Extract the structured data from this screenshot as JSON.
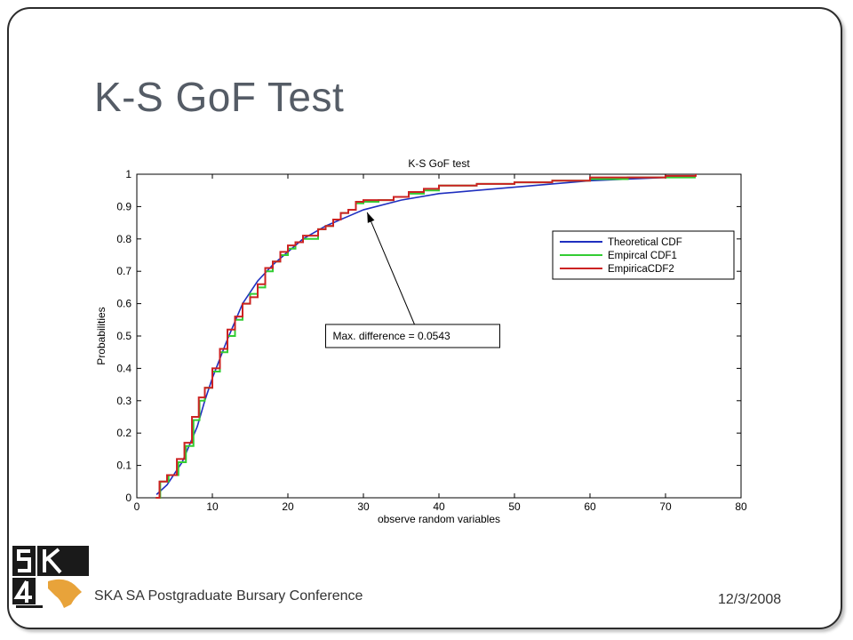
{
  "slide": {
    "title": "K-S GoF Test",
    "footer": "SKA SA Postgraduate Bursary Conference",
    "date": "12/3/2008",
    "logo_text": "SKA"
  },
  "colors": {
    "frame": "#2b2b2b",
    "title": "#555c66",
    "theoretical": "#1f2fbf",
    "empirical1": "#33cc33",
    "empirical2": "#cc2222",
    "logo": "#1a1a1a",
    "logo_accent": "#e8a33a"
  },
  "chart_data": {
    "type": "line",
    "title": "K-S GoF test",
    "xlabel": "observe random variables",
    "ylabel": "Probabilities",
    "xlim": [
      0,
      80
    ],
    "ylim": [
      0,
      1
    ],
    "xticks": [
      0,
      10,
      20,
      30,
      40,
      50,
      60,
      70,
      80
    ],
    "yticks": [
      0,
      0.1,
      0.2,
      0.3,
      0.4,
      0.5,
      0.6,
      0.7,
      0.8,
      0.9,
      1
    ],
    "grid": false,
    "legend_position": "right",
    "series": [
      {
        "name": "Theoretical CDF",
        "color": "#1f2fbf",
        "step": false,
        "x": [
          2.6,
          4,
          6,
          8,
          9,
          10,
          12,
          14,
          16,
          18,
          20,
          22,
          25,
          28,
          30,
          35,
          40,
          45,
          50,
          55,
          60,
          65,
          70,
          74
        ],
        "y": [
          0.01,
          0.04,
          0.11,
          0.22,
          0.3,
          0.37,
          0.49,
          0.6,
          0.67,
          0.72,
          0.76,
          0.8,
          0.84,
          0.87,
          0.89,
          0.92,
          0.94,
          0.95,
          0.96,
          0.97,
          0.98,
          0.985,
          0.99,
          0.995
        ]
      },
      {
        "name": "Empircal CDF1",
        "color": "#33cc33",
        "step": true,
        "x": [
          2.5,
          3.1,
          4.2,
          5.5,
          6.5,
          7.5,
          8.3,
          9,
          10,
          11,
          12,
          13,
          14,
          15,
          16,
          17,
          18,
          19,
          20,
          21,
          22,
          23.5,
          24,
          25,
          26,
          27,
          28,
          29,
          30,
          32,
          34,
          36,
          38,
          40,
          45,
          50,
          55,
          60,
          65,
          70,
          74
        ],
        "y": [
          0,
          0.05,
          0.07,
          0.11,
          0.16,
          0.24,
          0.3,
          0.34,
          0.39,
          0.45,
          0.5,
          0.55,
          0.6,
          0.63,
          0.65,
          0.7,
          0.73,
          0.75,
          0.77,
          0.79,
          0.8,
          0.8,
          0.83,
          0.84,
          0.86,
          0.88,
          0.89,
          0.91,
          0.915,
          0.92,
          0.93,
          0.94,
          0.95,
          0.965,
          0.97,
          0.975,
          0.98,
          0.985,
          0.99,
          0.99,
          0.99
        ]
      },
      {
        "name": "EmpiricaCDF2",
        "color": "#cc2222",
        "step": true,
        "x": [
          2.5,
          3,
          4,
          5.3,
          6.3,
          7.3,
          8.2,
          9,
          10,
          11,
          12,
          13,
          14,
          15,
          16,
          17,
          18,
          19,
          20,
          21,
          22,
          23.5,
          24,
          25,
          26,
          27,
          28,
          29,
          30,
          32,
          34,
          36,
          38,
          40,
          45,
          50,
          55,
          60,
          65,
          70,
          74
        ],
        "y": [
          0,
          0.05,
          0.07,
          0.12,
          0.17,
          0.25,
          0.31,
          0.34,
          0.4,
          0.46,
          0.52,
          0.56,
          0.6,
          0.62,
          0.66,
          0.71,
          0.73,
          0.76,
          0.78,
          0.79,
          0.81,
          0.81,
          0.83,
          0.84,
          0.86,
          0.88,
          0.89,
          0.915,
          0.92,
          0.92,
          0.93,
          0.945,
          0.955,
          0.965,
          0.97,
          0.975,
          0.98,
          0.99,
          0.99,
          0.995,
          1.0
        ]
      }
    ],
    "annotation": {
      "text": "Max. difference = 0.0543",
      "box_x": 25,
      "box_y": 0.5,
      "arrow_to": [
        30.5,
        0.882
      ]
    }
  }
}
